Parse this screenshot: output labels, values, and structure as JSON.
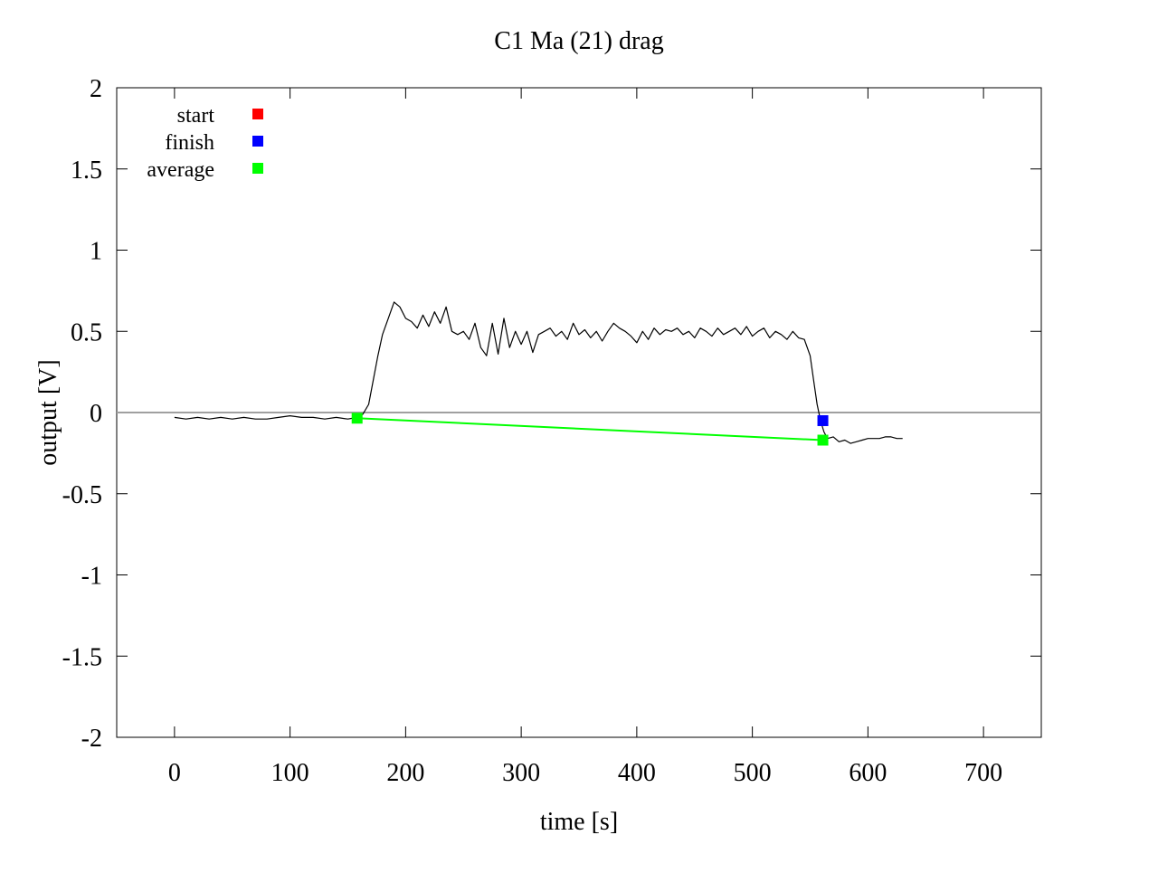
{
  "chart_data": {
    "type": "line",
    "title": "C1  Ma (21) drag",
    "xlabel": "time [s]",
    "ylabel": "output [V]",
    "xlim": [
      -50,
      750
    ],
    "ylim": [
      -2,
      2
    ],
    "x_ticks": [
      0,
      100,
      200,
      300,
      400,
      500,
      600,
      700
    ],
    "x_tick_labels": [
      "0",
      "100",
      "200",
      "300",
      "400",
      "500",
      "600",
      "700"
    ],
    "y_ticks": [
      2,
      1.5,
      1,
      0.5,
      0,
      -0.5,
      -1,
      -1.5,
      -2
    ],
    "y_tick_labels": [
      "2",
      "1.5",
      "1",
      "0.5",
      "0",
      "-0.5",
      "-1",
      "-1.5",
      "-2"
    ],
    "grid": false,
    "zero_line": true,
    "legend_position": "top-left",
    "legend": [
      {
        "label": "start",
        "color": "#ff0000"
      },
      {
        "label": "finish",
        "color": "#0000ff"
      },
      {
        "label": "average",
        "color": "#00ff00"
      }
    ],
    "signal": {
      "color": "#000000",
      "x": [
        0,
        10,
        20,
        30,
        40,
        50,
        60,
        70,
        80,
        90,
        100,
        110,
        120,
        130,
        140,
        150,
        158,
        163,
        168,
        172,
        176,
        180,
        185,
        190,
        195,
        200,
        205,
        210,
        215,
        220,
        225,
        230,
        235,
        240,
        245,
        250,
        255,
        260,
        265,
        270,
        275,
        280,
        285,
        290,
        295,
        300,
        305,
        310,
        315,
        320,
        325,
        330,
        335,
        340,
        345,
        350,
        355,
        360,
        365,
        370,
        375,
        380,
        385,
        390,
        395,
        400,
        405,
        410,
        415,
        420,
        425,
        430,
        435,
        440,
        445,
        450,
        455,
        460,
        465,
        470,
        475,
        480,
        485,
        490,
        495,
        500,
        505,
        510,
        515,
        520,
        525,
        530,
        535,
        540,
        545,
        550,
        553,
        556,
        559,
        562,
        565,
        570,
        575,
        580,
        585,
        590,
        595,
        600,
        605,
        610,
        615,
        620,
        625,
        630
      ],
      "y": [
        -0.03,
        -0.04,
        -0.03,
        -0.04,
        -0.03,
        -0.04,
        -0.03,
        -0.04,
        -0.04,
        -0.03,
        -0.02,
        -0.03,
        -0.03,
        -0.04,
        -0.03,
        -0.04,
        -0.03,
        -0.01,
        0.05,
        0.2,
        0.35,
        0.48,
        0.58,
        0.68,
        0.65,
        0.58,
        0.56,
        0.52,
        0.6,
        0.53,
        0.62,
        0.55,
        0.65,
        0.5,
        0.48,
        0.5,
        0.45,
        0.55,
        0.4,
        0.35,
        0.55,
        0.36,
        0.58,
        0.4,
        0.5,
        0.42,
        0.5,
        0.37,
        0.48,
        0.5,
        0.52,
        0.47,
        0.5,
        0.45,
        0.55,
        0.48,
        0.51,
        0.46,
        0.5,
        0.44,
        0.5,
        0.55,
        0.52,
        0.5,
        0.47,
        0.43,
        0.5,
        0.45,
        0.52,
        0.48,
        0.51,
        0.5,
        0.52,
        0.48,
        0.5,
        0.46,
        0.52,
        0.5,
        0.47,
        0.52,
        0.48,
        0.5,
        0.52,
        0.48,
        0.53,
        0.47,
        0.5,
        0.52,
        0.46,
        0.5,
        0.48,
        0.45,
        0.5,
        0.46,
        0.45,
        0.35,
        0.2,
        0.05,
        -0.05,
        -0.12,
        -0.16,
        -0.15,
        -0.18,
        -0.17,
        -0.19,
        -0.18,
        -0.17,
        -0.16,
        -0.16,
        -0.16,
        -0.15,
        -0.15,
        -0.16,
        -0.16
      ]
    },
    "reference_line": {
      "y": 0,
      "color": "#a0a0a0"
    },
    "average_line": {
      "color": "#00ff00",
      "x": [
        158,
        561
      ],
      "y": [
        -0.035,
        -0.17
      ]
    },
    "markers": [
      {
        "series": "average",
        "x": 158,
        "y": -0.035,
        "color": "#00ff00"
      },
      {
        "series": "finish",
        "x": 561,
        "y": -0.05,
        "color": "#0000ff"
      },
      {
        "series": "average",
        "x": 561,
        "y": -0.17,
        "color": "#00ff00"
      }
    ]
  }
}
